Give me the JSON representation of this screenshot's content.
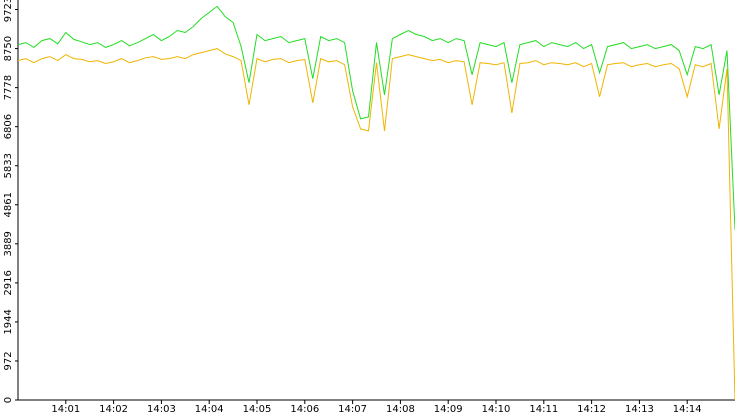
{
  "chart_data": {
    "type": "line",
    "x": [
      "14:00:00",
      "14:00:10",
      "14:00:20",
      "14:00:30",
      "14:00:40",
      "14:00:50",
      "14:01:00",
      "14:01:10",
      "14:01:20",
      "14:01:30",
      "14:01:40",
      "14:01:50",
      "14:02:00",
      "14:02:10",
      "14:02:20",
      "14:02:30",
      "14:02:40",
      "14:02:50",
      "14:03:00",
      "14:03:10",
      "14:03:20",
      "14:03:30",
      "14:03:40",
      "14:03:50",
      "14:04:00",
      "14:04:10",
      "14:04:20",
      "14:04:30",
      "14:04:40",
      "14:04:50",
      "14:05:00",
      "14:05:10",
      "14:05:20",
      "14:05:30",
      "14:05:40",
      "14:05:50",
      "14:06:00",
      "14:06:10",
      "14:06:20",
      "14:06:30",
      "14:06:40",
      "14:06:50",
      "14:07:00",
      "14:07:10",
      "14:07:20",
      "14:07:30",
      "14:07:40",
      "14:07:50",
      "14:08:00",
      "14:08:10",
      "14:08:20",
      "14:08:30",
      "14:08:40",
      "14:08:50",
      "14:09:00",
      "14:09:10",
      "14:09:20",
      "14:09:30",
      "14:09:40",
      "14:09:50",
      "14:10:00",
      "14:10:10",
      "14:10:20",
      "14:10:30",
      "14:10:40",
      "14:10:50",
      "14:11:00",
      "14:11:10",
      "14:11:20",
      "14:11:30",
      "14:11:40",
      "14:11:50",
      "14:12:00",
      "14:12:10",
      "14:12:20",
      "14:12:30",
      "14:12:40",
      "14:12:50",
      "14:13:00",
      "14:13:10",
      "14:13:20",
      "14:13:30",
      "14:13:40",
      "14:13:50",
      "14:14:00",
      "14:14:10",
      "14:14:20",
      "14:14:30",
      "14:14:40",
      "14:14:50",
      "14:15:00"
    ],
    "series": [
      {
        "color": "#22dd22",
        "values": [
          8850,
          8900,
          8780,
          8950,
          9000,
          8870,
          9150,
          8980,
          8920,
          8850,
          8900,
          8780,
          8850,
          8950,
          8820,
          8900,
          9000,
          9100,
          8950,
          9050,
          9200,
          9150,
          9300,
          9500,
          9650,
          9800,
          9550,
          9400,
          8800,
          7900,
          9100,
          8950,
          9000,
          9050,
          8900,
          8950,
          9000,
          8000,
          9050,
          8950,
          9000,
          8900,
          7700,
          7000,
          7050,
          8900,
          7600,
          9000,
          9100,
          9200,
          9100,
          9050,
          8950,
          9000,
          8900,
          9000,
          8950,
          8100,
          8900,
          8850,
          8800,
          8900,
          7900,
          8850,
          8900,
          8950,
          8800,
          8900,
          8850,
          8800,
          8900,
          8750,
          8850,
          8150,
          8800,
          8850,
          8900,
          8750,
          8800,
          8850,
          8750,
          8800,
          8850,
          8700,
          8100,
          8800,
          8750,
          8850,
          7600,
          8700,
          4240
        ]
      },
      {
        "color": "#f0b400",
        "values": [
          8450,
          8500,
          8400,
          8500,
          8550,
          8450,
          8600,
          8500,
          8480,
          8420,
          8450,
          8380,
          8420,
          8500,
          8400,
          8450,
          8520,
          8550,
          8480,
          8500,
          8550,
          8500,
          8600,
          8650,
          8700,
          8750,
          8620,
          8550,
          8450,
          7350,
          8500,
          8420,
          8480,
          8500,
          8400,
          8450,
          8480,
          7400,
          8500,
          8420,
          8450,
          8350,
          7300,
          6750,
          6700,
          8400,
          6700,
          8500,
          8550,
          8600,
          8550,
          8500,
          8450,
          8480,
          8400,
          8450,
          8420,
          7350,
          8400,
          8380,
          8350,
          8400,
          7150,
          8380,
          8400,
          8450,
          8350,
          8400,
          8380,
          8350,
          8400,
          8300,
          8380,
          7550,
          8350,
          8380,
          8400,
          8300,
          8350,
          8380,
          8300,
          8350,
          8380,
          8250,
          7550,
          8350,
          8300,
          8380,
          6750,
          8250,
          0
        ]
      }
    ],
    "xlim": [
      "14:00:00",
      "14:15:00"
    ],
    "xticks": [
      "14:01",
      "14:02",
      "14:03",
      "14:04",
      "14:05",
      "14:06",
      "14:07",
      "14:08",
      "14:09",
      "14:10",
      "14:11",
      "14:12",
      "14:13",
      "14:14"
    ],
    "ylim": [
      0,
      9960
    ],
    "yticks": [
      0,
      972,
      1944,
      2916,
      3889,
      4861,
      5833,
      6806,
      7778,
      8750,
      9723
    ]
  }
}
